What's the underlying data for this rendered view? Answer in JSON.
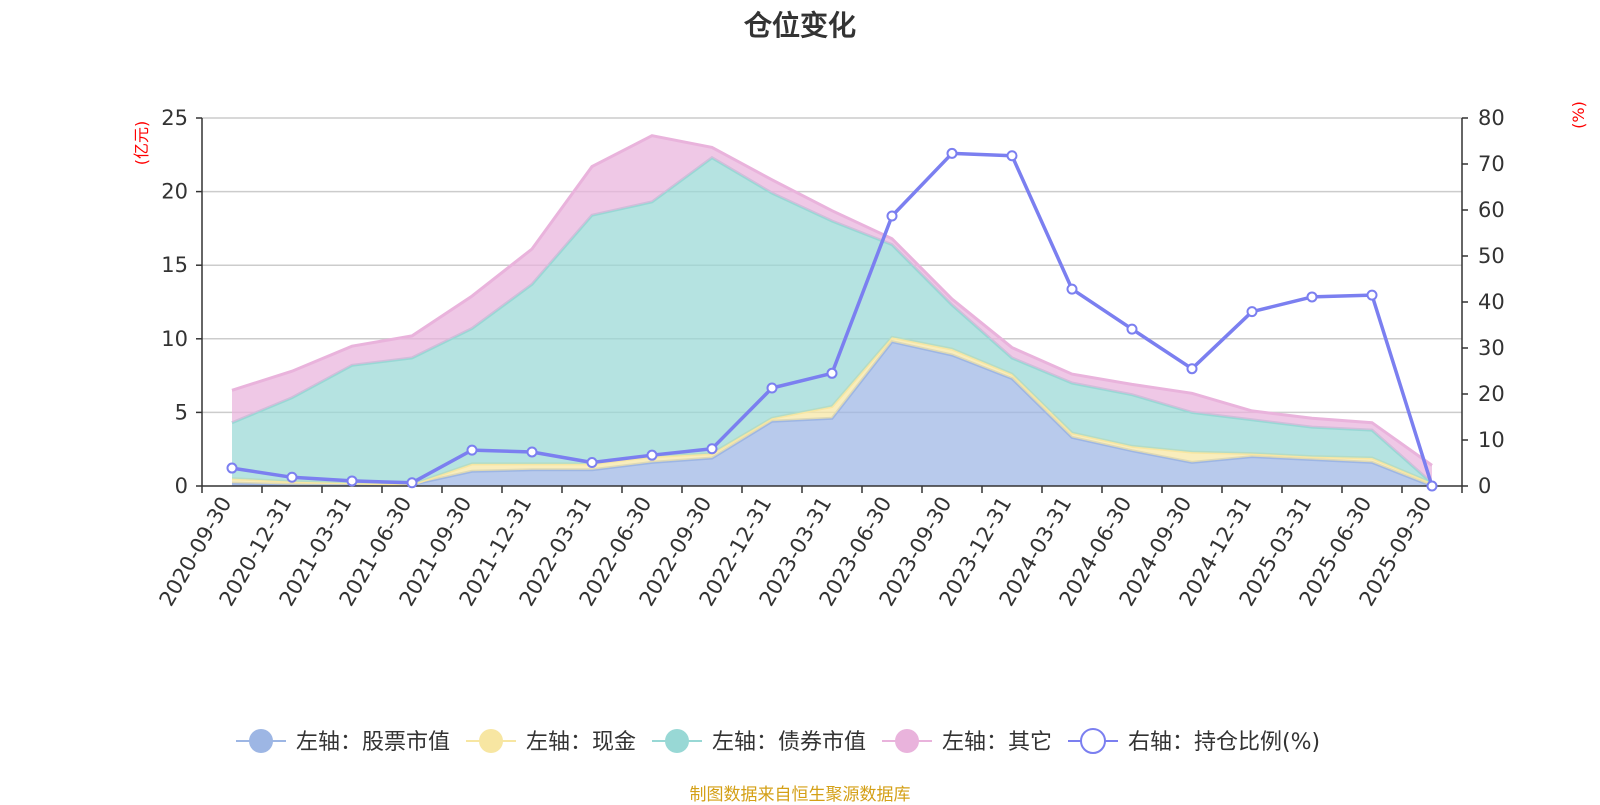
{
  "chart_data": {
    "type": "area",
    "title": "仓位变化",
    "source": "制图数据来自恒生聚源数据库",
    "left_axis": {
      "unit": "(亿元)",
      "min": 0,
      "max": 25,
      "ticks": [
        0,
        5,
        10,
        15,
        20,
        25
      ]
    },
    "right_axis": {
      "unit": "(%)",
      "min": 0,
      "max": 80,
      "ticks": [
        0,
        10,
        20,
        30,
        40,
        50,
        60,
        70,
        80
      ]
    },
    "categories": [
      "2020-09-30",
      "2020-12-31",
      "2021-03-31",
      "2021-06-30",
      "2021-09-30",
      "2021-12-31",
      "2022-03-31",
      "2022-06-30",
      "2022-09-30",
      "2022-12-31",
      "2023-03-31",
      "2023-06-30",
      "2023-09-30",
      "2023-12-31",
      "2024-03-31",
      "2024-06-30",
      "2024-09-30",
      "2024-12-31",
      "2025-03-31",
      "2025-06-30",
      "2025-09-30"
    ],
    "series": [
      {
        "name": "左轴：股票市值",
        "axis": "left",
        "kind": "stack",
        "color": "#9db6e4",
        "values": [
          0.2,
          0.1,
          0.1,
          0.1,
          1.0,
          1.1,
          1.1,
          1.6,
          1.9,
          4.4,
          4.6,
          9.8,
          8.9,
          7.3,
          3.3,
          2.4,
          1.6,
          2.0,
          1.8,
          1.6,
          0.0
        ]
      },
      {
        "name": "左轴：现金",
        "axis": "left",
        "kind": "stack",
        "color": "#f7e6a2",
        "values": [
          0.3,
          0.2,
          0.1,
          0.0,
          0.5,
          0.4,
          0.4,
          0.4,
          0.3,
          0.2,
          0.8,
          0.3,
          0.4,
          0.3,
          0.3,
          0.3,
          0.7,
          0.2,
          0.2,
          0.3,
          0.2
        ]
      },
      {
        "name": "左轴：债券市值",
        "axis": "left",
        "kind": "stack",
        "color": "#98d8d5",
        "values": [
          3.8,
          5.7,
          8.0,
          8.6,
          9.2,
          12.2,
          16.9,
          17.3,
          20.1,
          15.3,
          12.6,
          6.3,
          3.0,
          1.1,
          3.4,
          3.5,
          2.7,
          2.3,
          2.0,
          1.9,
          0.0
        ]
      },
      {
        "name": "左轴：其它",
        "axis": "left",
        "kind": "stack",
        "color": "#e9b3dc",
        "values": [
          2.2,
          1.8,
          1.3,
          1.5,
          2.2,
          2.4,
          3.3,
          4.5,
          0.7,
          0.9,
          0.7,
          0.4,
          0.4,
          0.7,
          0.6,
          0.7,
          1.3,
          0.6,
          0.6,
          0.5,
          1.2
        ]
      },
      {
        "name": "右轴：持仓比例(%)",
        "axis": "right",
        "kind": "line",
        "color": "#7b7ff0",
        "values": [
          3.9,
          1.9,
          1.1,
          0.7,
          7.8,
          7.4,
          5.1,
          6.7,
          8.1,
          21.3,
          24.5,
          58.7,
          72.3,
          71.8,
          42.8,
          34.1,
          25.5,
          37.9,
          41.1,
          41.5,
          0.0
        ]
      }
    ]
  }
}
